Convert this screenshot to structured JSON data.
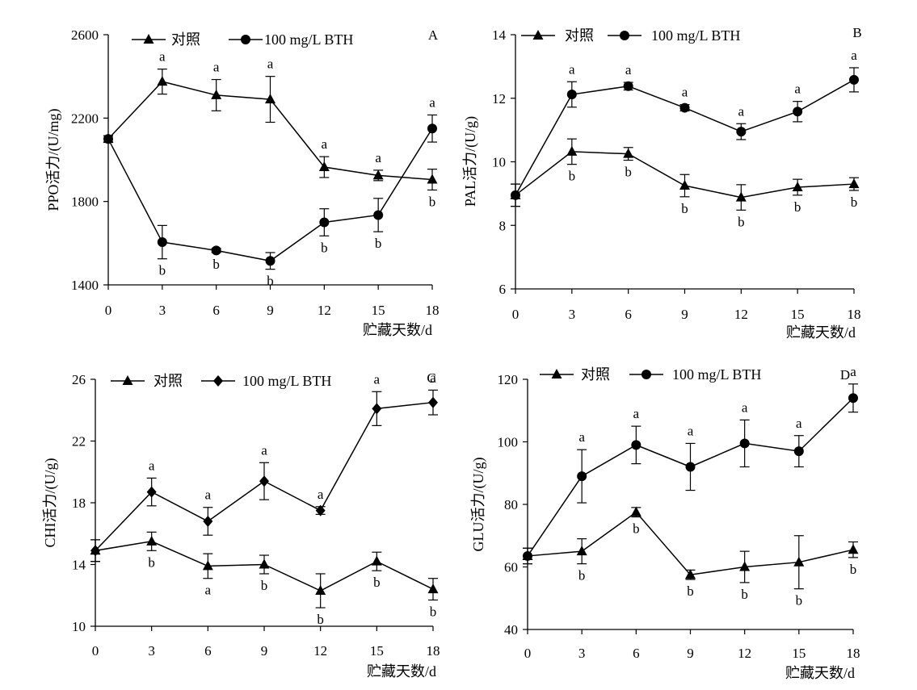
{
  "chart_data": [
    {
      "type": "line",
      "panel_label": "A",
      "xlabel": "贮藏天数/d",
      "ylabel": "PPO活力/(U/mg)",
      "x": [
        0,
        3,
        6,
        9,
        12,
        15,
        18
      ],
      "ylim": [
        1400,
        2600
      ],
      "yticks": [
        "1400",
        "1800",
        "2200",
        "2600"
      ],
      "series": [
        {
          "name": "对照",
          "marker": "triangle",
          "values": [
            2100,
            2375,
            2310,
            2290,
            1965,
            1925,
            1905
          ],
          "errors": [
            15,
            60,
            75,
            110,
            50,
            25,
            50
          ],
          "labels": [
            "",
            "a",
            "a",
            "a",
            "a",
            "a",
            "b"
          ]
        },
        {
          "name": "100 mg/L BTH",
          "marker": "circle",
          "values": [
            2100,
            1605,
            1565,
            1515,
            1700,
            1735,
            2150
          ],
          "errors": [
            15,
            80,
            10,
            40,
            65,
            80,
            65
          ],
          "labels": [
            "",
            "b",
            "b",
            "b",
            "b",
            "b",
            "a"
          ]
        }
      ]
    },
    {
      "type": "line",
      "panel_label": "B",
      "xlabel": "贮藏天数/d",
      "ylabel": "PAL活力/(U/g)",
      "x": [
        0,
        3,
        6,
        9,
        12,
        15,
        18
      ],
      "ylim": [
        6,
        14
      ],
      "yticks": [
        "6",
        "8",
        "10",
        "12",
        "14"
      ],
      "series": [
        {
          "name": "对照",
          "marker": "triangle",
          "values": [
            8.95,
            10.32,
            10.25,
            9.25,
            8.88,
            9.2,
            9.3
          ],
          "errors": [
            0.35,
            0.4,
            0.2,
            0.35,
            0.4,
            0.25,
            0.2
          ],
          "labels": [
            "",
            "b",
            "b",
            "b",
            "b",
            "b",
            "b"
          ]
        },
        {
          "name": "100 mg/L BTH",
          "marker": "circle",
          "values": [
            8.95,
            12.12,
            12.38,
            11.7,
            10.95,
            11.58,
            12.58
          ],
          "errors": [
            0.35,
            0.4,
            0.12,
            0.1,
            0.25,
            0.32,
            0.38
          ],
          "labels": [
            "",
            "a",
            "a",
            "a",
            "a",
            "a",
            "a"
          ]
        }
      ]
    },
    {
      "type": "line",
      "panel_label": "C",
      "xlabel": "贮藏天数/d",
      "ylabel": "CHI活力/(U/g)",
      "x": [
        0,
        3,
        6,
        9,
        12,
        15,
        18
      ],
      "ylim": [
        10,
        26
      ],
      "yticks": [
        "10",
        "14",
        "18",
        "22",
        "26"
      ],
      "series": [
        {
          "name": "对照",
          "marker": "triangle",
          "values": [
            14.9,
            15.5,
            13.9,
            14.0,
            12.3,
            14.2,
            12.4
          ],
          "errors": [
            0.7,
            0.6,
            0.8,
            0.6,
            1.1,
            0.6,
            0.7
          ],
          "labels": [
            "",
            "b",
            "a",
            "b",
            "b",
            "b",
            "b"
          ]
        },
        {
          "name": "100 mg/L BTH",
          "marker": "diamond",
          "values": [
            14.9,
            18.7,
            16.8,
            19.4,
            17.5,
            24.1,
            24.5
          ],
          "errors": [
            0.7,
            0.9,
            0.9,
            1.2,
            0.25,
            1.1,
            0.8
          ],
          "labels": [
            "",
            "a",
            "a",
            "a",
            "a",
            "a",
            "a"
          ]
        }
      ]
    },
    {
      "type": "line",
      "panel_label": "D",
      "xlabel": "贮藏天数/d",
      "ylabel": "GLU活力/(U/g)",
      "x": [
        0,
        3,
        6,
        9,
        12,
        15,
        18
      ],
      "ylim": [
        40,
        120
      ],
      "yticks": [
        "40",
        "60",
        "80",
        "100",
        "120"
      ],
      "series": [
        {
          "name": "对照",
          "marker": "triangle",
          "values": [
            63.5,
            65.0,
            77.5,
            57.5,
            60.0,
            61.5,
            65.5
          ],
          "errors": [
            2.5,
            4.0,
            1.5,
            1.5,
            5.0,
            8.5,
            2.5
          ],
          "labels": [
            "",
            "b",
            "b",
            "b",
            "b",
            "b",
            "b"
          ]
        },
        {
          "name": "100 mg/L BTH",
          "marker": "circle",
          "values": [
            63.5,
            89.0,
            99.0,
            92.0,
            99.5,
            97.0,
            114.0
          ],
          "errors": [
            2.5,
            8.5,
            6.0,
            7.5,
            7.5,
            5.0,
            4.5
          ],
          "labels": [
            "",
            "a",
            "a",
            "a",
            "a",
            "a",
            "a"
          ]
        }
      ]
    }
  ]
}
